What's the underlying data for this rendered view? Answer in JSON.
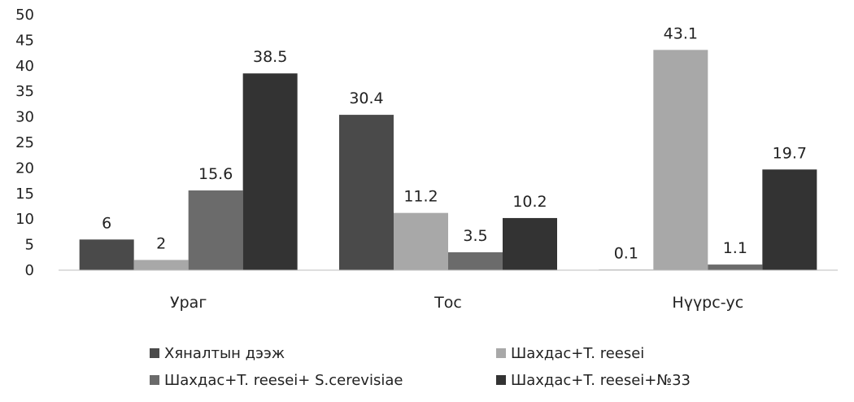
{
  "chart_data": {
    "type": "bar",
    "categories": [
      "Ураг",
      "Тос",
      "Нүүрс-ус"
    ],
    "series": [
      {
        "name": "Хяналтын дээж",
        "values": [
          6,
          30.4,
          0.1
        ],
        "labels": [
          "6",
          "30.4",
          "0.1"
        ],
        "color": "#4a4a4a"
      },
      {
        "name": "Шахдас+T. reesei",
        "values": [
          2,
          11.2,
          43.1
        ],
        "labels": [
          "2",
          "11.2",
          "43.1"
        ],
        "color": "#a8a8a8"
      },
      {
        "name": "Шахдас+T. reesei+ S.cerevisiae",
        "values": [
          15.6,
          3.5,
          1.1
        ],
        "labels": [
          "15.6",
          "3.5",
          "1.1"
        ],
        "color": "#6b6b6b"
      },
      {
        "name": "Шахдас+T. reesei+№33",
        "values": [
          38.5,
          10.2,
          19.7
        ],
        "labels": [
          "38.5",
          "10.2",
          "19.7"
        ],
        "color": "#333333"
      }
    ],
    "y_ticks": [
      "0",
      "5",
      "10",
      "15",
      "20",
      "25",
      "30",
      "35",
      "40",
      "45",
      "50"
    ],
    "ylim": [
      0,
      50
    ],
    "grid": false,
    "legend_position": "bottom"
  }
}
